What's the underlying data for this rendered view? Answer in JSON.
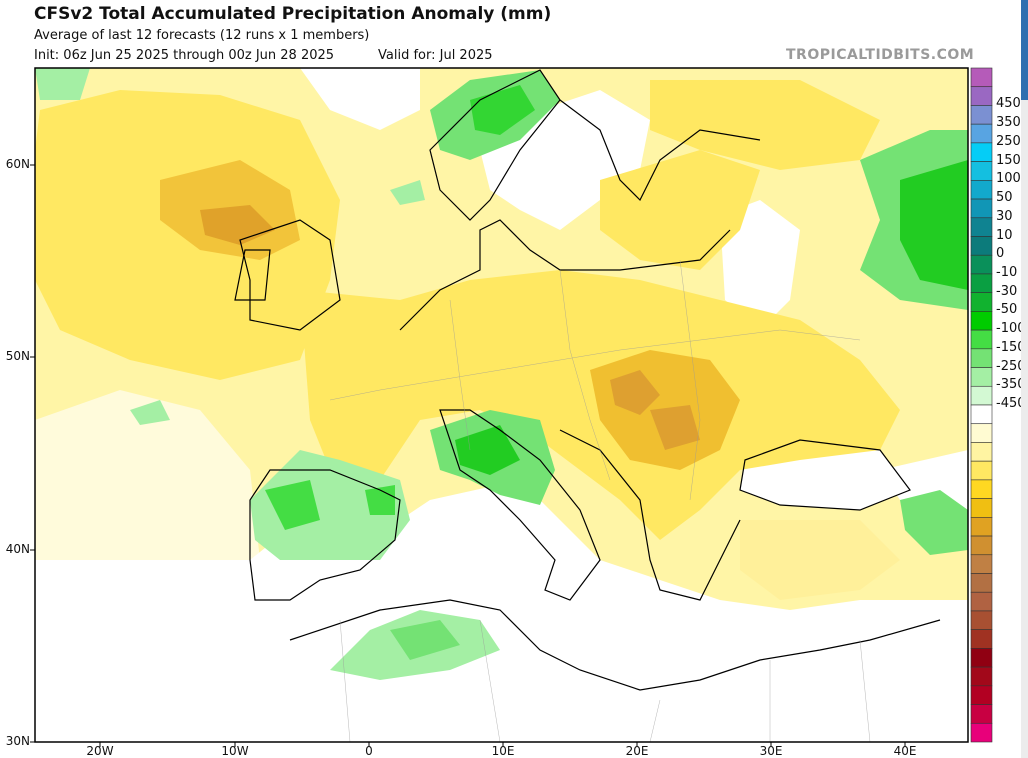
{
  "header": {
    "title": "CFSv2 Total Accumulated Precipitation Anomaly (mm)",
    "subtitle": "Average of last 12 forecasts (12 runs x 1 members)",
    "init": "Init: 06z Jun 25 2025 through 00z Jun 28 2025",
    "valid": "Valid for: Jul 2025",
    "watermark": "TROPICALTIDBITS.COM"
  },
  "axes": {
    "lat_labels": [
      "60N",
      "50N",
      "40N",
      "30N"
    ],
    "lon_labels": [
      "20W",
      "10W",
      "0",
      "10E",
      "20E",
      "30E",
      "40E"
    ]
  },
  "colorbar": {
    "labels": [
      "450",
      "350",
      "250",
      "150",
      "100",
      "50",
      "30",
      "10",
      "0",
      "-10",
      "-30",
      "-50",
      "-100",
      "-150",
      "-250",
      "-350",
      "-450"
    ],
    "colors": [
      "#b55bb9",
      "#9a68c2",
      "#7b90d2",
      "#58a4e2",
      "#05cdf6",
      "#14bfe0",
      "#12a9cc",
      "#1196b6",
      "#0f8391",
      "#0c7b7b",
      "#0a905a",
      "#0a9f42",
      "#11b22f",
      "#00cc00",
      "#44dd44",
      "#74e274",
      "#a4efa4",
      "#d3f9d3",
      "#ffffff",
      "#fffbd2",
      "#fff4a2",
      "#ffe862",
      "#ffd822",
      "#f0bf12",
      "#e0a222",
      "#d09030",
      "#c08044",
      "#b27043",
      "#b06242",
      "#a85032",
      "#a03222",
      "#900012",
      "#a2081a",
      "#b20022",
      "#c80042",
      "#e8007a"
    ]
  }
}
